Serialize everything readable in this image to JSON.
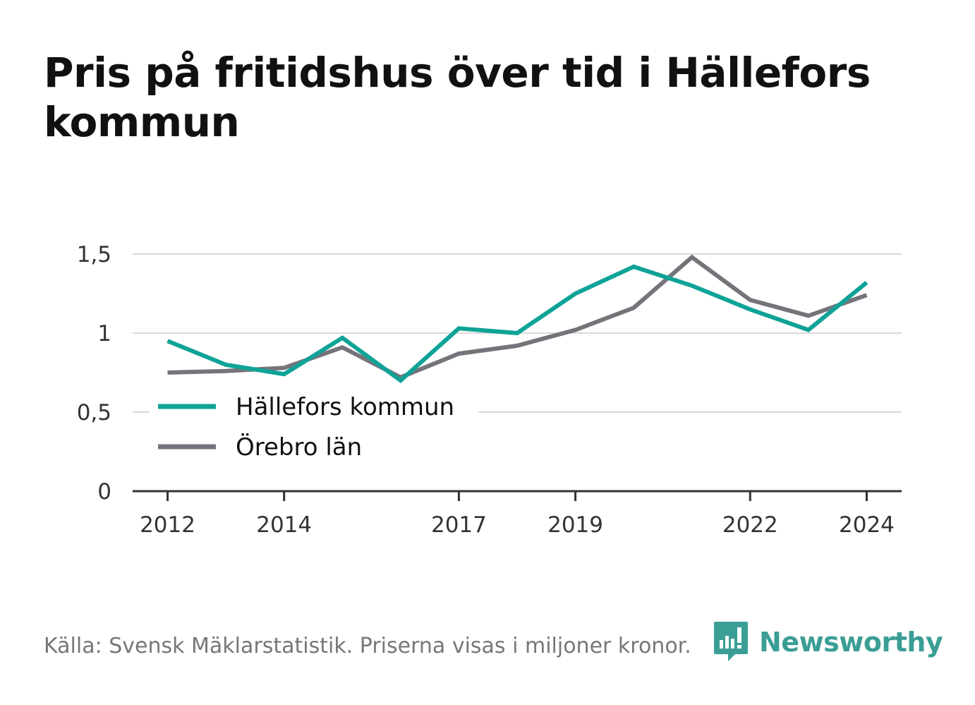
{
  "title": "Pris på fritidshus över tid i Hällefors kommun",
  "footer": {
    "source": "Källa: Svensk Mäklarstatistik. Priserna visas i miljoner kronor.",
    "brand": "Newsworthy"
  },
  "colors": {
    "series_1": "#0fa397",
    "series_2": "#75747a",
    "grid": "#d9d9d9",
    "axis": "#333333",
    "brand": "#3a9e95"
  },
  "chart_data": {
    "type": "line",
    "title": "Pris på fritidshus över tid i Hällefors kommun",
    "xlabel": "",
    "ylabel": "",
    "x": [
      2012,
      2013,
      2014,
      2015,
      2016,
      2017,
      2018,
      2019,
      2020,
      2021,
      2022,
      2023,
      2024
    ],
    "x_ticks": [
      "2012",
      "2014",
      "2017",
      "2019",
      "2022",
      "2024"
    ],
    "x_tick_values": [
      2012,
      2014,
      2017,
      2019,
      2022,
      2024
    ],
    "xlim": [
      2011.4,
      2024.6
    ],
    "y_ticks": [
      "0",
      "0,5",
      "1",
      "1,5"
    ],
    "y_tick_values": [
      0,
      0.5,
      1,
      1.5
    ],
    "ylim": [
      0,
      1.5
    ],
    "grid": true,
    "legend_position": "lower-left",
    "series": [
      {
        "name": "Hällefors kommun",
        "values": [
          0.95,
          0.8,
          0.74,
          0.97,
          0.7,
          1.03,
          1.0,
          1.25,
          1.42,
          1.3,
          1.15,
          1.02,
          1.32
        ]
      },
      {
        "name": "Örebro län",
        "values": [
          0.75,
          0.76,
          0.78,
          0.91,
          0.72,
          0.87,
          0.92,
          1.02,
          1.16,
          1.48,
          1.21,
          1.11,
          1.24
        ]
      }
    ]
  }
}
